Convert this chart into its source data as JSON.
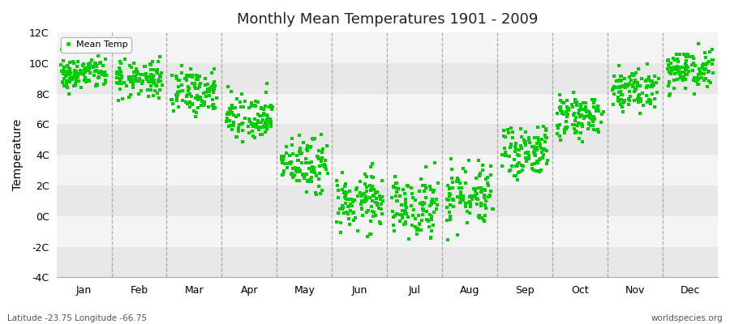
{
  "title": "Monthly Mean Temperatures 1901 - 2009",
  "ylabel": "Temperature",
  "subtitle_left": "Latitude -23.75 Longitude -66.75",
  "subtitle_right": "worldspecies.org",
  "legend_label": "Mean Temp",
  "dot_color": "#00cc00",
  "background_color": "#ffffff",
  "band_color_dark": "#e8e8e8",
  "band_color_light": "#f4f4f4",
  "vline_color": "#999999",
  "ylim": [
    -4,
    12
  ],
  "ytick_labels": [
    "-4C",
    "-2C",
    "0C",
    "2C",
    "4C",
    "6C",
    "8C",
    "10C",
    "12C"
  ],
  "ytick_values": [
    -4,
    -2,
    0,
    2,
    4,
    6,
    8,
    10,
    12
  ],
  "months": [
    "Jan",
    "Feb",
    "Mar",
    "Apr",
    "May",
    "Jun",
    "Jul",
    "Aug",
    "Sep",
    "Oct",
    "Nov",
    "Dec"
  ],
  "start_year": 1901,
  "end_year": 2009,
  "mean_temps_by_month": [
    9.3,
    9.0,
    8.2,
    6.3,
    3.4,
    1.0,
    0.6,
    1.4,
    4.2,
    6.4,
    8.4,
    9.5
  ],
  "std_by_month": [
    0.55,
    0.55,
    0.65,
    0.75,
    0.85,
    0.9,
    0.85,
    0.85,
    0.85,
    0.75,
    0.65,
    0.65
  ],
  "extra_spread_by_month": [
    0.3,
    0.3,
    0.4,
    0.5,
    0.5,
    0.6,
    0.6,
    0.6,
    0.6,
    0.5,
    0.4,
    0.3
  ],
  "marker_size": 10,
  "dpi": 100,
  "figsize": [
    9.0,
    4.0
  ]
}
